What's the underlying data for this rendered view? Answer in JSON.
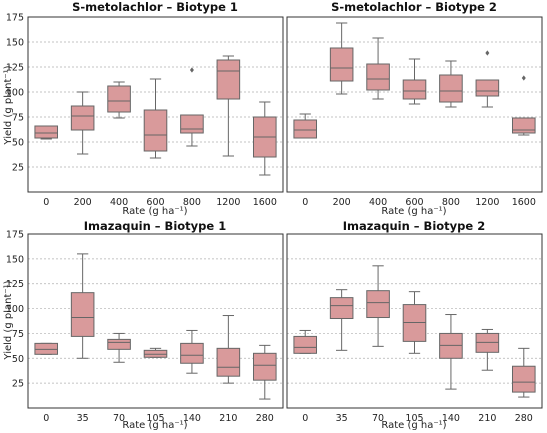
{
  "colors": {
    "box_fill": "#d99a9b",
    "box_edge": "#666666",
    "grid": "#b0b0b0"
  },
  "chart_data": [
    {
      "type": "box",
      "title": "S-metolachlor – Biotype 1",
      "xlabel": "Rate (g ha⁻¹)",
      "ylabel": "Yield (g plant⁻¹)",
      "ylim": [
        0,
        175
      ],
      "yticks": [
        25,
        50,
        75,
        100,
        125,
        150,
        175
      ],
      "categories": [
        "0",
        "200",
        "400",
        "600",
        "800",
        "1200",
        "1600"
      ],
      "grid": "y",
      "boxes": [
        {
          "whislo": 53,
          "q1": 54,
          "med": 59,
          "q3": 66,
          "whishi": 66,
          "fliers": []
        },
        {
          "whislo": 38,
          "q1": 62,
          "med": 76,
          "q3": 86,
          "whishi": 100,
          "fliers": []
        },
        {
          "whislo": 74,
          "q1": 80,
          "med": 91,
          "q3": 106,
          "whishi": 110,
          "fliers": []
        },
        {
          "whislo": 34,
          "q1": 41,
          "med": 57,
          "q3": 82,
          "whishi": 113,
          "fliers": []
        },
        {
          "whislo": 46,
          "q1": 59,
          "med": 63,
          "q3": 77,
          "whishi": 77,
          "fliers": [
            122
          ]
        },
        {
          "whislo": 36,
          "q1": 93,
          "med": 121,
          "q3": 132,
          "whishi": 136,
          "fliers": []
        },
        {
          "whislo": 17,
          "q1": 35,
          "med": 55,
          "q3": 75,
          "whishi": 90,
          "fliers": []
        }
      ]
    },
    {
      "type": "box",
      "title": "S-metolachlor – Biotype 2",
      "xlabel": "Rate (g ha⁻¹)",
      "ylabel": "",
      "ylim": [
        0,
        175
      ],
      "yticks": [
        25,
        50,
        75,
        100,
        125,
        150,
        175
      ],
      "categories": [
        "0",
        "200",
        "400",
        "600",
        "800",
        "1200",
        "1600"
      ],
      "grid": "y",
      "boxes": [
        {
          "whislo": 54,
          "q1": 54,
          "med": 62,
          "q3": 72,
          "whishi": 78,
          "fliers": []
        },
        {
          "whislo": 98,
          "q1": 111,
          "med": 124,
          "q3": 144,
          "whishi": 169,
          "fliers": []
        },
        {
          "whislo": 93,
          "q1": 102,
          "med": 113,
          "q3": 128,
          "whishi": 154,
          "fliers": []
        },
        {
          "whislo": 88,
          "q1": 93,
          "med": 101,
          "q3": 112,
          "whishi": 133,
          "fliers": []
        },
        {
          "whislo": 85,
          "q1": 90,
          "med": 101,
          "q3": 117,
          "whishi": 131,
          "fliers": []
        },
        {
          "whislo": 85,
          "q1": 96,
          "med": 101,
          "q3": 112,
          "whishi": 112,
          "fliers": [
            139
          ]
        },
        {
          "whislo": 57,
          "q1": 59,
          "med": 62,
          "q3": 74,
          "whishi": 74,
          "fliers": [
            114
          ]
        }
      ]
    },
    {
      "type": "box",
      "title": "Imazaquin – Biotype 1",
      "xlabel": "Rate (g ha⁻¹)",
      "ylabel": "Yield (g plant⁻¹)",
      "ylim": [
        0,
        175
      ],
      "yticks": [
        25,
        50,
        75,
        100,
        125,
        150,
        175
      ],
      "categories": [
        "0",
        "35",
        "70",
        "105",
        "140",
        "210",
        "280"
      ],
      "grid": "y",
      "boxes": [
        {
          "whislo": 54,
          "q1": 54,
          "med": 59,
          "q3": 65,
          "whishi": 65,
          "fliers": []
        },
        {
          "whislo": 50,
          "q1": 72,
          "med": 91,
          "q3": 116,
          "whishi": 155,
          "fliers": []
        },
        {
          "whislo": 46,
          "q1": 59,
          "med": 66,
          "q3": 69,
          "whishi": 75,
          "fliers": []
        },
        {
          "whislo": 51,
          "q1": 51,
          "med": 54,
          "q3": 58,
          "whishi": 60,
          "fliers": []
        },
        {
          "whislo": 35,
          "q1": 45,
          "med": 53,
          "q3": 65,
          "whishi": 78,
          "fliers": []
        },
        {
          "whislo": 25,
          "q1": 32,
          "med": 41,
          "q3": 60,
          "whishi": 93,
          "fliers": []
        },
        {
          "whislo": 9,
          "q1": 28,
          "med": 43,
          "q3": 55,
          "whishi": 63,
          "fliers": []
        }
      ]
    },
    {
      "type": "box",
      "title": "Imazaquin – Biotype 2",
      "xlabel": "Rate (g ha⁻¹)",
      "ylabel": "",
      "ylim": [
        0,
        175
      ],
      "yticks": [
        25,
        50,
        75,
        100,
        125,
        150,
        175
      ],
      "categories": [
        "0",
        "35",
        "70",
        "105",
        "140",
        "210",
        "280"
      ],
      "grid": "y",
      "boxes": [
        {
          "whislo": 55,
          "q1": 55,
          "med": 61,
          "q3": 72,
          "whishi": 78,
          "fliers": []
        },
        {
          "whislo": 58,
          "q1": 90,
          "med": 103,
          "q3": 111,
          "whishi": 119,
          "fliers": []
        },
        {
          "whislo": 62,
          "q1": 91,
          "med": 106,
          "q3": 118,
          "whishi": 143,
          "fliers": []
        },
        {
          "whislo": 55,
          "q1": 67,
          "med": 86,
          "q3": 104,
          "whishi": 117,
          "fliers": []
        },
        {
          "whislo": 19,
          "q1": 50,
          "med": 63,
          "q3": 75,
          "whishi": 94,
          "fliers": []
        },
        {
          "whislo": 38,
          "q1": 56,
          "med": 66,
          "q3": 75,
          "whishi": 79,
          "fliers": []
        },
        {
          "whislo": 11,
          "q1": 16,
          "med": 26,
          "q3": 42,
          "whishi": 60,
          "fliers": []
        }
      ]
    }
  ]
}
